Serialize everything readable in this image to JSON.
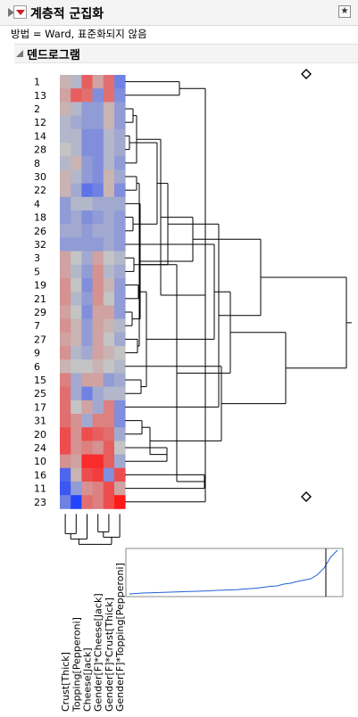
{
  "window": {
    "title": "계층적 군집화",
    "method_text": "방법 = Ward,  표준화되지 않음",
    "section_title": "덴드로그램",
    "menu_icon": "red-triangle-menu-icon",
    "pin_icon": "pin-icon",
    "disclosure_icon": "disclosure-triangle-icon"
  },
  "dendrogram": {
    "row_labels": [
      "1",
      "13",
      "2",
      "12",
      "14",
      "28",
      "8",
      "30",
      "22",
      "4",
      "18",
      "26",
      "32",
      "3",
      "5",
      "19",
      "21",
      "29",
      "7",
      "27",
      "9",
      "6",
      "15",
      "25",
      "17",
      "31",
      "20",
      "24",
      "10",
      "16",
      "11",
      "23"
    ],
    "column_labels": [
      "Crust[Thick]",
      "Topping[Pepperoni]",
      "Cheese[Jack]",
      "Gender[F]*Cheese[Jack]",
      "Gender[F]*Crust[Thick]",
      "Gender[F]*Topping[Pepperoni]"
    ],
    "heatmap_values": [
      [
        0.1,
        -0.1,
        0.6,
        0.2,
        0.5,
        -0.5
      ],
      [
        0.2,
        0.6,
        0.5,
        -0.4,
        0.5,
        -0.4
      ],
      [
        0.1,
        -0.1,
        -0.3,
        -0.3,
        0.1,
        -0.3
      ],
      [
        -0.1,
        -0.2,
        -0.3,
        -0.3,
        0.1,
        -0.3
      ],
      [
        -0.1,
        -0.1,
        -0.4,
        -0.4,
        -0.1,
        -0.2
      ],
      [
        0.0,
        -0.1,
        -0.4,
        -0.4,
        -0.1,
        -0.2
      ],
      [
        -0.1,
        0.1,
        -0.3,
        -0.4,
        -0.1,
        -0.3
      ],
      [
        0.1,
        -0.1,
        -0.3,
        -0.4,
        0.1,
        -0.2
      ],
      [
        0.1,
        -0.2,
        -0.6,
        -0.5,
        0.1,
        -0.4
      ],
      [
        -0.3,
        -0.1,
        -0.1,
        -0.2,
        -0.2,
        -0.2
      ],
      [
        -0.3,
        -0.2,
        -0.4,
        -0.3,
        -0.2,
        -0.3
      ],
      [
        -0.2,
        -0.2,
        -0.3,
        -0.2,
        -0.2,
        -0.3
      ],
      [
        -0.3,
        -0.3,
        -0.3,
        -0.3,
        -0.2,
        -0.3
      ],
      [
        0.2,
        0.0,
        -0.2,
        0.2,
        0.0,
        -0.1
      ],
      [
        0.2,
        -0.1,
        -0.3,
        0.3,
        -0.1,
        -0.2
      ],
      [
        0.3,
        0.0,
        -0.4,
        0.3,
        0.1,
        -0.3
      ],
      [
        0.3,
        -0.1,
        -0.3,
        0.3,
        0.0,
        -0.3
      ],
      [
        0.2,
        0.0,
        -0.4,
        0.2,
        0.2,
        -0.3
      ],
      [
        0.3,
        0.1,
        -0.3,
        0.2,
        0.1,
        -0.1
      ],
      [
        0.2,
        0.1,
        -0.3,
        0.2,
        0.0,
        -0.2
      ],
      [
        0.3,
        -0.1,
        -0.2,
        0.2,
        0.1,
        0.0
      ],
      [
        0.1,
        0.0,
        0.0,
        0.1,
        0.0,
        -0.1
      ],
      [
        0.4,
        -0.2,
        0.2,
        0.2,
        -0.3,
        -0.2
      ],
      [
        0.5,
        -0.2,
        -0.5,
        -0.2,
        -0.1,
        -0.1
      ],
      [
        0.5,
        0.0,
        0.2,
        -0.2,
        0.4,
        -0.4
      ],
      [
        0.5,
        0.3,
        -0.2,
        0.4,
        0.4,
        -0.4
      ],
      [
        0.7,
        0.3,
        0.7,
        0.6,
        0.5,
        -0.2
      ],
      [
        0.7,
        0.3,
        0.4,
        0.3,
        0.6,
        0.0
      ],
      [
        0.3,
        0.2,
        0.9,
        0.9,
        0.6,
        -0.2
      ],
      [
        -0.7,
        0.1,
        0.7,
        0.8,
        -0.4,
        0.7
      ],
      [
        -0.8,
        -0.3,
        0.3,
        0.4,
        0.7,
        0.2
      ],
      [
        -0.5,
        -0.95,
        0.5,
        0.4,
        0.7,
        1.0
      ]
    ],
    "cluster_history_plot": {
      "type": "line",
      "line_color": "#1f5fd6",
      "values": [
        0.02,
        0.03,
        0.04,
        0.045,
        0.05,
        0.055,
        0.06,
        0.065,
        0.07,
        0.075,
        0.08,
        0.085,
        0.09,
        0.1,
        0.105,
        0.11,
        0.115,
        0.13,
        0.14,
        0.15,
        0.17,
        0.19,
        0.2,
        0.24,
        0.26,
        0.3,
        0.33,
        0.36,
        0.45,
        0.6,
        0.85,
        1.0
      ]
    },
    "colors": {
      "high": "#ff1a1a",
      "mid": "#c4c4c4",
      "low": "#1a3dff",
      "line": "#000000",
      "panel": "#ffffff",
      "background": "#f4f4f4"
    }
  }
}
